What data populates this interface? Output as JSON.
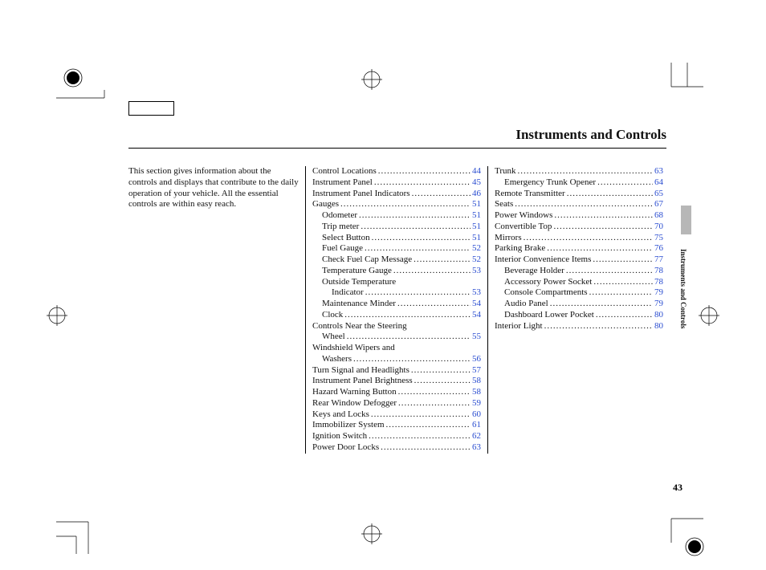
{
  "title": "Instruments and Controls",
  "intro": "This section gives information about the controls and displays that contribute to the daily operation of your vehicle. All the essential controls are within easy reach.",
  "page_number": "43",
  "side_label": "Instruments and Controls",
  "link_color": "#2a4dd0",
  "col2": [
    {
      "label": "Control Locations",
      "page": "44",
      "lvl": 1
    },
    {
      "label": "Instrument Panel",
      "page": "45",
      "lvl": 1
    },
    {
      "label": "Instrument Panel Indicators",
      "page": "46",
      "lvl": 1
    },
    {
      "label": "Gauges",
      "page": "51",
      "lvl": 1
    },
    {
      "label": "Odometer",
      "page": "51",
      "lvl": 2
    },
    {
      "label": "Trip meter",
      "page": "51",
      "lvl": 2
    },
    {
      "label": "Select Button",
      "page": "51",
      "lvl": 2
    },
    {
      "label": "Fuel Gauge",
      "page": "52",
      "lvl": 2
    },
    {
      "label": "Check Fuel Cap Message",
      "page": "52",
      "lvl": 2
    },
    {
      "label": "Temperature Gauge",
      "page": "53",
      "lvl": 2
    },
    {
      "label": "Outside Temperature",
      "page": "",
      "lvl": 2,
      "noleader": true
    },
    {
      "label": "Indicator",
      "page": "53",
      "lvl": 3
    },
    {
      "label": "Maintenance Minder",
      "page": "54",
      "lvl": 2
    },
    {
      "label": "Clock",
      "page": "54",
      "lvl": 2
    },
    {
      "label": "Controls Near the Steering",
      "page": "",
      "lvl": 1,
      "noleader": true
    },
    {
      "label": "Wheel",
      "page": "55",
      "lvl": 2
    },
    {
      "label": "Windshield Wipers and",
      "page": "",
      "lvl": 1,
      "noleader": true
    },
    {
      "label": "Washers",
      "page": "56",
      "lvl": 2
    },
    {
      "label": "Turn Signal and Headlights",
      "page": "57",
      "lvl": 1
    },
    {
      "label": "Instrument Panel Brightness",
      "page": "58",
      "lvl": 1
    },
    {
      "label": "Hazard Warning Button",
      "page": "58",
      "lvl": 1
    },
    {
      "label": "Rear Window Defogger",
      "page": "59",
      "lvl": 1
    },
    {
      "label": "Keys and Locks",
      "page": "60",
      "lvl": 1
    },
    {
      "label": "Immobilizer System",
      "page": "61",
      "lvl": 1
    },
    {
      "label": "Ignition Switch",
      "page": "62",
      "lvl": 1
    },
    {
      "label": "Power Door Locks",
      "page": "63",
      "lvl": 1
    }
  ],
  "col3": [
    {
      "label": "Trunk",
      "page": "63",
      "lvl": 1
    },
    {
      "label": "Emergency Trunk Opener",
      "page": "64",
      "lvl": 2
    },
    {
      "label": "Remote Transmitter",
      "page": "65",
      "lvl": 1
    },
    {
      "label": "Seats",
      "page": "67",
      "lvl": 1
    },
    {
      "label": "Power Windows",
      "page": "68",
      "lvl": 1
    },
    {
      "label": "Convertible Top",
      "page": "70",
      "lvl": 1
    },
    {
      "label": "Mirrors",
      "page": "75",
      "lvl": 1
    },
    {
      "label": "Parking Brake",
      "page": "76",
      "lvl": 1
    },
    {
      "label": "Interior Convenience Items",
      "page": "77",
      "lvl": 1
    },
    {
      "label": "Beverage Holder",
      "page": "78",
      "lvl": 2
    },
    {
      "label": "Accessory Power Socket",
      "page": "78",
      "lvl": 2
    },
    {
      "label": "Console Compartments",
      "page": "79",
      "lvl": 2
    },
    {
      "label": "Audio Panel",
      "page": "79",
      "lvl": 2
    },
    {
      "label": "Dashboard Lower Pocket",
      "page": "80",
      "lvl": 2
    },
    {
      "label": "Interior Light",
      "page": "80",
      "lvl": 1
    }
  ]
}
